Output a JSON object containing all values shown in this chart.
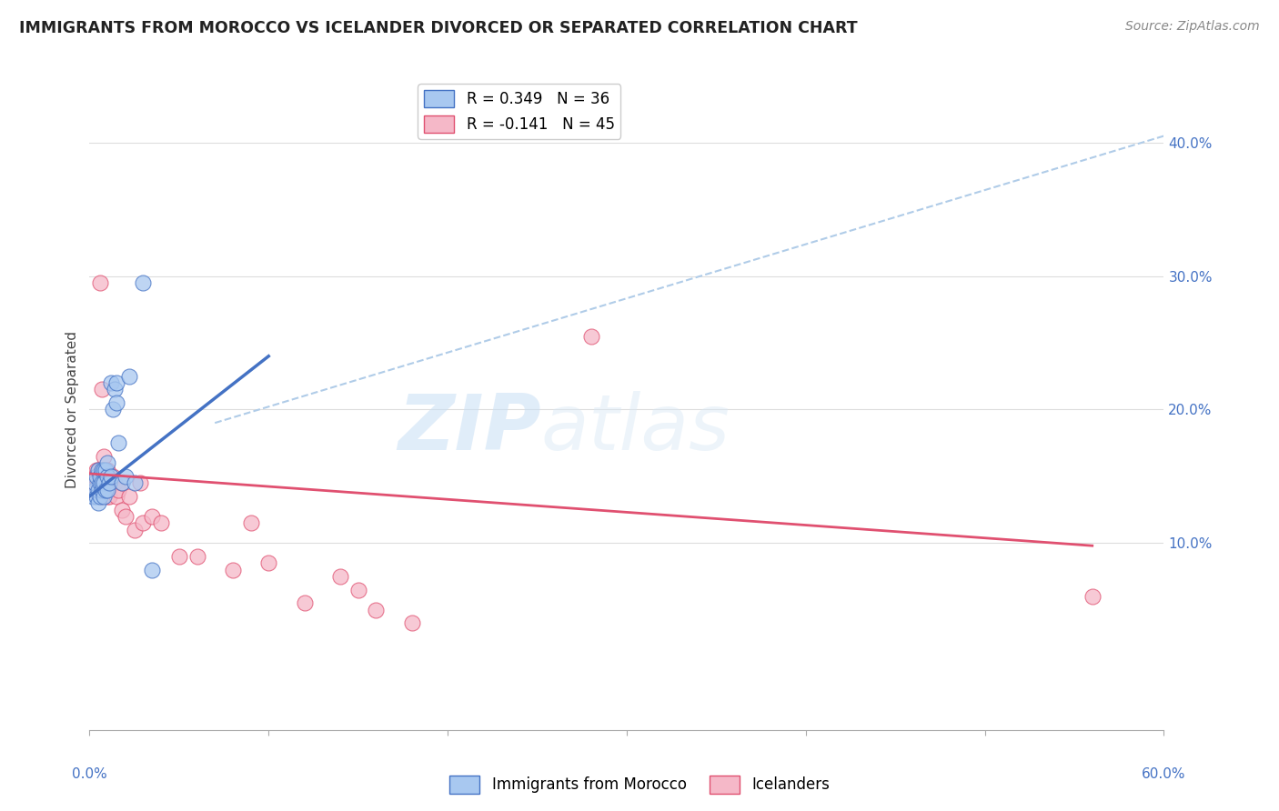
{
  "title": "IMMIGRANTS FROM MOROCCO VS ICELANDER DIVORCED OR SEPARATED CORRELATION CHART",
  "source": "Source: ZipAtlas.com",
  "ylabel": "Divorced or Separated",
  "ylabel_right_ticks": [
    "10.0%",
    "20.0%",
    "30.0%",
    "40.0%"
  ],
  "ylabel_right_vals": [
    0.1,
    0.2,
    0.3,
    0.4
  ],
  "xmin": 0.0,
  "xmax": 0.6,
  "ymin": -0.04,
  "ymax": 0.44,
  "blue_color": "#a8c8f0",
  "pink_color": "#f5b8c8",
  "blue_line_color": "#4472c4",
  "pink_line_color": "#e05070",
  "dashed_line_color": "#b0cce8",
  "watermark_zip": "ZIP",
  "watermark_atlas": "atlas",
  "blue_scatter_x": [
    0.002,
    0.003,
    0.003,
    0.004,
    0.004,
    0.005,
    0.005,
    0.005,
    0.006,
    0.006,
    0.006,
    0.007,
    0.007,
    0.007,
    0.008,
    0.008,
    0.008,
    0.009,
    0.009,
    0.01,
    0.01,
    0.01,
    0.011,
    0.012,
    0.012,
    0.013,
    0.014,
    0.015,
    0.015,
    0.016,
    0.018,
    0.02,
    0.022,
    0.025,
    0.03,
    0.035
  ],
  "blue_scatter_y": [
    0.135,
    0.14,
    0.145,
    0.135,
    0.15,
    0.13,
    0.14,
    0.155,
    0.135,
    0.145,
    0.15,
    0.14,
    0.145,
    0.155,
    0.135,
    0.145,
    0.155,
    0.14,
    0.155,
    0.14,
    0.15,
    0.16,
    0.145,
    0.15,
    0.22,
    0.2,
    0.215,
    0.205,
    0.22,
    0.175,
    0.145,
    0.15,
    0.225,
    0.145,
    0.295,
    0.08
  ],
  "pink_scatter_x": [
    0.002,
    0.003,
    0.003,
    0.004,
    0.004,
    0.005,
    0.005,
    0.006,
    0.006,
    0.007,
    0.007,
    0.007,
    0.008,
    0.008,
    0.009,
    0.01,
    0.01,
    0.01,
    0.011,
    0.012,
    0.013,
    0.014,
    0.015,
    0.016,
    0.018,
    0.018,
    0.02,
    0.022,
    0.025,
    0.028,
    0.03,
    0.035,
    0.04,
    0.05,
    0.06,
    0.08,
    0.09,
    0.1,
    0.12,
    0.14,
    0.15,
    0.16,
    0.18,
    0.28,
    0.56
  ],
  "pink_scatter_y": [
    0.14,
    0.145,
    0.15,
    0.14,
    0.155,
    0.145,
    0.155,
    0.14,
    0.295,
    0.135,
    0.155,
    0.215,
    0.145,
    0.165,
    0.145,
    0.135,
    0.145,
    0.155,
    0.135,
    0.145,
    0.15,
    0.145,
    0.135,
    0.14,
    0.125,
    0.145,
    0.12,
    0.135,
    0.11,
    0.145,
    0.115,
    0.12,
    0.115,
    0.09,
    0.09,
    0.08,
    0.115,
    0.085,
    0.055,
    0.075,
    0.065,
    0.05,
    0.04,
    0.255,
    0.06
  ],
  "blue_line_x": [
    0.0,
    0.1
  ],
  "blue_line_y": [
    0.135,
    0.24
  ],
  "pink_line_x": [
    0.0,
    0.56
  ],
  "pink_line_y": [
    0.152,
    0.098
  ],
  "dashed_line_x": [
    0.07,
    0.6
  ],
  "dashed_line_y": [
    0.19,
    0.405
  ]
}
